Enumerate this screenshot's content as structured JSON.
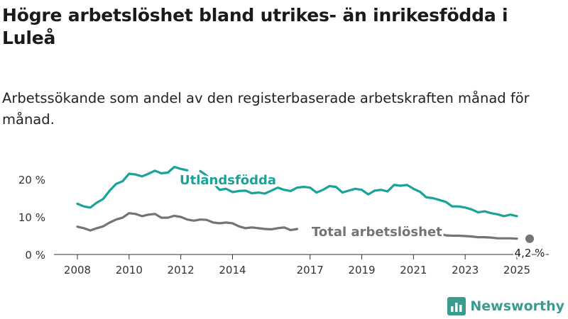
{
  "title": "Högre arbetslöshet bland utrikes- än inrikesfödda i Luleå",
  "subtitle": "Arbetssökande som andel av den registerbaserade arbetskraften månad för månad.",
  "brand": {
    "name": "Newsworthy",
    "logo_icon": "bar-chart-logo-icon"
  },
  "chart_data": {
    "type": "line",
    "x_ticks": [
      "2008",
      "2010",
      "2012",
      "2014",
      "2017",
      "2019",
      "2021",
      "2023",
      "2025"
    ],
    "y_ticks": [
      "0 %",
      "10 %",
      "20 %"
    ],
    "ylim": [
      0,
      25
    ],
    "grid": false,
    "series": [
      {
        "name": "Utlandsfödda",
        "color": "#1aa398",
        "points": [
          [
            "2008-01",
            13.5
          ],
          [
            "2008-04",
            12.8
          ],
          [
            "2008-07",
            12.5
          ],
          [
            "2008-10",
            13.8
          ],
          [
            "2009-01",
            14.8
          ],
          [
            "2009-04",
            17.0
          ],
          [
            "2009-07",
            18.8
          ],
          [
            "2009-10",
            19.5
          ],
          [
            "2010-01",
            21.5
          ],
          [
            "2010-04",
            21.3
          ],
          [
            "2010-07",
            20.8
          ],
          [
            "2010-10",
            21.5
          ],
          [
            "2011-01",
            22.3
          ],
          [
            "2011-04",
            21.6
          ],
          [
            "2011-07",
            21.8
          ],
          [
            "2011-10",
            23.3
          ],
          [
            "2012-01",
            22.8
          ],
          [
            "2012-04",
            22.4
          ],
          [
            "2012-07",
            null
          ],
          [
            "2012-10",
            22.2
          ],
          [
            "2013-01",
            21.0
          ],
          [
            "2013-04",
            19.0
          ],
          [
            "2013-07",
            17.2
          ],
          [
            "2013-10",
            17.5
          ],
          [
            "2014-01",
            16.6
          ],
          [
            "2014-04",
            16.9
          ],
          [
            "2014-07",
            17.0
          ],
          [
            "2014-10",
            16.3
          ],
          [
            "2015-01",
            16.5
          ],
          [
            "2015-04",
            16.2
          ],
          [
            "2015-07",
            17.0
          ],
          [
            "2015-10",
            17.8
          ],
          [
            "2016-01",
            17.2
          ],
          [
            "2016-04",
            16.9
          ],
          [
            "2016-07",
            17.8
          ],
          [
            "2016-10",
            18.0
          ],
          [
            "2017-01",
            17.8
          ],
          [
            "2017-04",
            16.5
          ],
          [
            "2017-07",
            17.2
          ],
          [
            "2017-10",
            18.2
          ],
          [
            "2018-01",
            18.0
          ],
          [
            "2018-04",
            16.5
          ],
          [
            "2018-07",
            17.0
          ],
          [
            "2018-10",
            17.5
          ],
          [
            "2019-01",
            17.2
          ],
          [
            "2019-04",
            16.0
          ],
          [
            "2019-07",
            17.0
          ],
          [
            "2019-10",
            17.2
          ],
          [
            "2020-01",
            16.8
          ],
          [
            "2020-04",
            18.5
          ],
          [
            "2020-07",
            18.3
          ],
          [
            "2020-10",
            18.5
          ],
          [
            "2021-01",
            17.5
          ],
          [
            "2021-04",
            16.7
          ],
          [
            "2021-07",
            15.2
          ],
          [
            "2021-10",
            15.0
          ],
          [
            "2022-01",
            14.5
          ],
          [
            "2022-04",
            14.0
          ],
          [
            "2022-07",
            12.8
          ],
          [
            "2022-10",
            12.8
          ],
          [
            "2023-01",
            12.5
          ],
          [
            "2023-04",
            12.0
          ],
          [
            "2023-07",
            11.2
          ],
          [
            "2023-10",
            11.5
          ],
          [
            "2024-01",
            11.0
          ],
          [
            "2024-04",
            10.7
          ],
          [
            "2024-07",
            10.2
          ],
          [
            "2024-10",
            10.6
          ],
          [
            "2025-01",
            10.2
          ]
        ]
      },
      {
        "name": "Total arbetslöshet",
        "color": "#737378",
        "points": [
          [
            "2008-01",
            7.4
          ],
          [
            "2008-04",
            7.0
          ],
          [
            "2008-07",
            6.4
          ],
          [
            "2008-10",
            7.0
          ],
          [
            "2009-01",
            7.5
          ],
          [
            "2009-04",
            8.5
          ],
          [
            "2009-07",
            9.3
          ],
          [
            "2009-10",
            9.8
          ],
          [
            "2010-01",
            11.0
          ],
          [
            "2010-04",
            10.8
          ],
          [
            "2010-07",
            10.2
          ],
          [
            "2010-10",
            10.6
          ],
          [
            "2011-01",
            10.8
          ],
          [
            "2011-04",
            9.8
          ],
          [
            "2011-07",
            9.8
          ],
          [
            "2011-10",
            10.3
          ],
          [
            "2012-01",
            10.0
          ],
          [
            "2012-04",
            9.3
          ],
          [
            "2012-07",
            9.0
          ],
          [
            "2012-10",
            9.3
          ],
          [
            "2013-01",
            9.2
          ],
          [
            "2013-04",
            8.5
          ],
          [
            "2013-07",
            8.3
          ],
          [
            "2013-10",
            8.5
          ],
          [
            "2014-01",
            8.3
          ],
          [
            "2014-04",
            7.5
          ],
          [
            "2014-07",
            7.0
          ],
          [
            "2014-10",
            7.2
          ],
          [
            "2015-01",
            7.0
          ],
          [
            "2015-04",
            6.8
          ],
          [
            "2015-07",
            6.7
          ],
          [
            "2015-10",
            7.0
          ],
          [
            "2016-01",
            7.2
          ],
          [
            "2016-04",
            6.5
          ],
          [
            "2016-07",
            6.8
          ],
          [
            "2016-10",
            null
          ],
          [
            "2017-01",
            null
          ],
          [
            "2017-04",
            null
          ],
          [
            "2017-07",
            null
          ],
          [
            "2017-10",
            null
          ],
          [
            "2018-01",
            null
          ],
          [
            "2018-04",
            null
          ],
          [
            "2018-07",
            null
          ],
          [
            "2018-10",
            null
          ],
          [
            "2019-01",
            null
          ],
          [
            "2019-04",
            null
          ],
          [
            "2019-07",
            null
          ],
          [
            "2019-10",
            null
          ],
          [
            "2020-01",
            null
          ],
          [
            "2020-04",
            null
          ],
          [
            "2020-07",
            null
          ],
          [
            "2020-10",
            null
          ],
          [
            "2021-01",
            null
          ],
          [
            "2021-04",
            null
          ],
          [
            "2021-07",
            null
          ],
          [
            "2021-10",
            null
          ],
          [
            "2022-01",
            5.6
          ],
          [
            "2022-04",
            5.1
          ],
          [
            "2022-07",
            5.0
          ],
          [
            "2022-10",
            5.0
          ],
          [
            "2023-01",
            4.9
          ],
          [
            "2023-04",
            4.8
          ],
          [
            "2023-07",
            4.6
          ],
          [
            "2023-10",
            4.6
          ],
          [
            "2024-01",
            4.5
          ],
          [
            "2024-04",
            4.3
          ],
          [
            "2024-07",
            4.3
          ],
          [
            "2024-10",
            4.3
          ],
          [
            "2025-01",
            4.2
          ]
        ]
      }
    ],
    "annotations": {
      "utlandsfodda_label": "Utlandsfödda",
      "total_label": "Total arbetslöshet",
      "end_value_label": "4,2 %"
    }
  }
}
